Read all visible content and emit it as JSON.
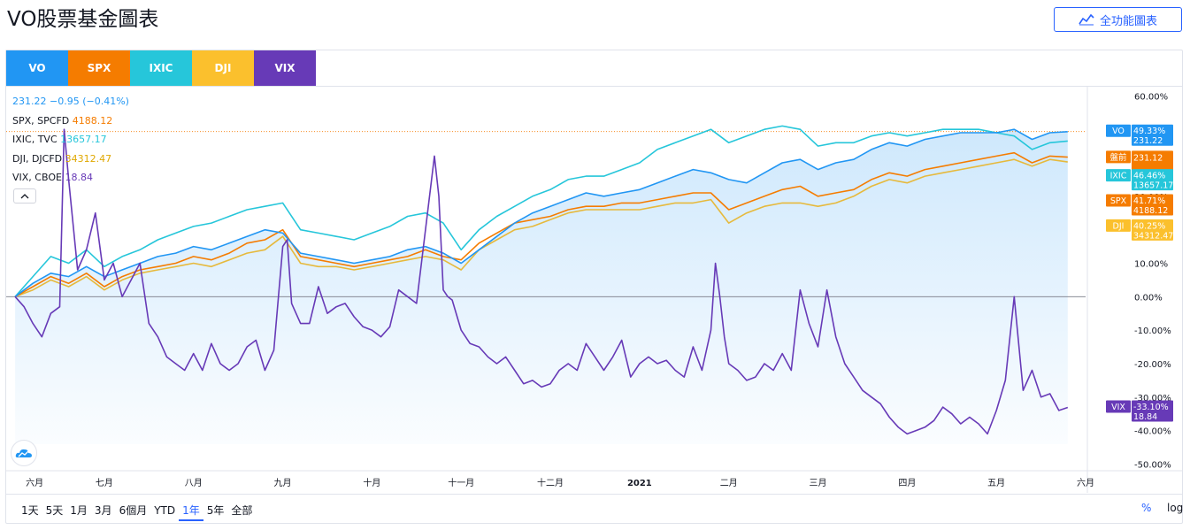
{
  "page": {
    "title": "VO股票基金圖表",
    "full_chart_button": "全功能圖表"
  },
  "tabs": [
    {
      "label": "VO",
      "color": "#2196f3"
    },
    {
      "label": "SPX",
      "color": "#f57c00"
    },
    {
      "label": "IXIC",
      "color": "#26c6da"
    },
    {
      "label": "DJI",
      "color": "#fbc02d"
    },
    {
      "label": "VIX",
      "color": "#673ab7"
    }
  ],
  "legend": [
    {
      "name": "",
      "value": "231.22 −0.95 (−0.41%)",
      "color": "#2196f3"
    },
    {
      "name": "SPX, SPCFD",
      "value": "4188.12",
      "color": "#f57c00"
    },
    {
      "name": "IXIC, TVC",
      "value": "13657.17",
      "color": "#26c6da"
    },
    {
      "name": "DJI, DJCFD",
      "value": "34312.47",
      "color": "#e0a800"
    },
    {
      "name": "VIX, CBOE",
      "value": "18.84",
      "color": "#673ab7"
    }
  ],
  "time_ranges": [
    {
      "label": "1天",
      "active": false
    },
    {
      "label": "5天",
      "active": false
    },
    {
      "label": "1月",
      "active": false
    },
    {
      "label": "3月",
      "active": false
    },
    {
      "label": "6個月",
      "active": false
    },
    {
      "label": "YTD",
      "active": false
    },
    {
      "label": "1年",
      "active": true
    },
    {
      "label": "5年",
      "active": false
    },
    {
      "label": "全部",
      "active": false
    }
  ],
  "scale_buttons": {
    "percent": "%",
    "log": "log"
  },
  "chart_data": {
    "type": "line",
    "title": "",
    "xlabel": "",
    "ylabel": "",
    "x_ticks": [
      "六月",
      "七月",
      "八月",
      "九月",
      "十月",
      "十一月",
      "十二月",
      "2021",
      "二月",
      "三月",
      "四月",
      "五月",
      "六月"
    ],
    "y_ticks": [
      "60.00%",
      "50.00%",
      "40.00%",
      "30.00%",
      "20.00%",
      "10.00%",
      "0.00%",
      "-10.00%",
      "-20.00%",
      "-30.00%",
      "-40.00%",
      "-50.00%"
    ],
    "y_tick_values": [
      60,
      50,
      40,
      30,
      20,
      10,
      0,
      -10,
      -20,
      -30,
      -40,
      -50
    ],
    "ylim": [
      -52,
      63
    ],
    "x_months": [
      0,
      1,
      2,
      3,
      4,
      5,
      6,
      7,
      8,
      9,
      10,
      11,
      12
    ],
    "xlim": [
      -0.1,
      12
    ],
    "grid": false,
    "badges": [
      {
        "series": "VO",
        "label": "VO",
        "pct": "49.33%",
        "value": "231.22",
        "y": 49.33,
        "color": "#2196f3"
      },
      {
        "series": "VO",
        "label": "盤前",
        "pct": "",
        "value": "231.12",
        "y": 41.5,
        "color": "#f57c00"
      },
      {
        "series": "IXIC",
        "label": "IXIC",
        "pct": "46.46%",
        "value": "13657.17",
        "y": 36.0,
        "color": "#26c6da"
      },
      {
        "series": "SPX",
        "label": "SPX",
        "pct": "41.71%",
        "value": "4188.12",
        "y": 28.5,
        "color": "#f57c00"
      },
      {
        "series": "DJI",
        "label": "DJI",
        "pct": "40.25%",
        "value": "34312.47",
        "y": 21.0,
        "color": "#fbc02d"
      },
      {
        "series": "VIX",
        "label": "VIX",
        "pct": "-33.10%",
        "value": "18.84",
        "y": -33.1,
        "color": "#673ab7"
      }
    ],
    "series": [
      {
        "name": "VO",
        "color": "#2196f3",
        "x": [
          0,
          0.2,
          0.4,
          0.6,
          0.8,
          1.0,
          1.2,
          1.4,
          1.6,
          1.8,
          2.0,
          2.2,
          2.4,
          2.6,
          2.8,
          3.0,
          3.2,
          3.4,
          3.6,
          3.8,
          4.0,
          4.2,
          4.4,
          4.6,
          4.8,
          5.0,
          5.2,
          5.4,
          5.6,
          5.8,
          6.0,
          6.2,
          6.4,
          6.6,
          6.8,
          7.0,
          7.2,
          7.4,
          7.6,
          7.8,
          8.0,
          8.2,
          8.4,
          8.6,
          8.8,
          9.0,
          9.2,
          9.4,
          9.6,
          9.8,
          10.0,
          10.2,
          10.4,
          10.6,
          10.8,
          11.0,
          11.2,
          11.4,
          11.6,
          11.8
        ],
        "values": [
          0,
          4,
          7,
          6,
          9,
          6,
          8,
          10,
          12,
          13,
          15,
          14,
          16,
          18,
          20,
          19,
          13,
          12,
          11,
          10,
          11,
          12,
          14,
          15,
          13,
          10,
          14,
          18,
          22,
          25,
          27,
          29,
          31,
          30,
          31,
          32,
          34,
          36,
          38,
          37,
          35,
          34,
          37,
          40,
          41,
          38,
          40,
          41,
          44,
          46,
          45,
          47,
          48,
          49,
          49,
          49,
          50,
          47,
          49,
          49.3
        ]
      },
      {
        "name": "SPX",
        "color": "#f57c00",
        "x": [
          0,
          0.2,
          0.4,
          0.6,
          0.8,
          1.0,
          1.2,
          1.4,
          1.6,
          1.8,
          2.0,
          2.2,
          2.4,
          2.6,
          2.8,
          3.0,
          3.2,
          3.4,
          3.6,
          3.8,
          4.0,
          4.2,
          4.4,
          4.6,
          4.8,
          5.0,
          5.2,
          5.4,
          5.6,
          5.8,
          6.0,
          6.2,
          6.4,
          6.6,
          6.8,
          7.0,
          7.2,
          7.4,
          7.6,
          7.8,
          8.0,
          8.2,
          8.4,
          8.6,
          8.8,
          9.0,
          9.2,
          9.4,
          9.6,
          9.8,
          10.0,
          10.2,
          10.4,
          10.6,
          10.8,
          11.0,
          11.2,
          11.4,
          11.6,
          11.8
        ],
        "values": [
          0,
          3,
          6,
          4,
          7,
          3,
          6,
          8,
          9,
          10,
          12,
          11,
          13,
          16,
          17,
          20,
          12,
          11,
          10,
          9,
          10,
          11,
          12,
          14,
          12,
          11,
          16,
          19,
          22,
          23,
          24,
          26,
          27,
          27,
          28,
          28,
          29,
          30,
          31,
          31,
          26,
          28,
          30,
          32,
          33,
          30,
          31,
          32,
          35,
          37,
          36,
          38,
          39,
          40,
          41,
          42,
          43,
          40,
          42,
          41.7
        ]
      },
      {
        "name": "IXIC",
        "color": "#26c6da",
        "x": [
          0,
          0.2,
          0.4,
          0.6,
          0.8,
          1.0,
          1.2,
          1.4,
          1.6,
          1.8,
          2.0,
          2.2,
          2.4,
          2.6,
          2.8,
          3.0,
          3.2,
          3.4,
          3.6,
          3.8,
          4.0,
          4.2,
          4.4,
          4.6,
          4.8,
          5.0,
          5.2,
          5.4,
          5.6,
          5.8,
          6.0,
          6.2,
          6.4,
          6.6,
          6.8,
          7.0,
          7.2,
          7.4,
          7.6,
          7.8,
          8.0,
          8.2,
          8.4,
          8.6,
          8.8,
          9.0,
          9.2,
          9.4,
          9.6,
          9.8,
          10.0,
          10.2,
          10.4,
          10.6,
          10.8,
          11.0,
          11.2,
          11.4,
          11.6,
          11.8
        ],
        "values": [
          0,
          6,
          12,
          10,
          14,
          9,
          12,
          14,
          17,
          19,
          21,
          22,
          24,
          26,
          27,
          28,
          20,
          19,
          18,
          17,
          19,
          21,
          24,
          25,
          22,
          14,
          20,
          24,
          27,
          30,
          32,
          35,
          36,
          36,
          38,
          40,
          44,
          46,
          48,
          50,
          46,
          48,
          50,
          51,
          50,
          45,
          46,
          46,
          48,
          49,
          48,
          49,
          50,
          50,
          50,
          49,
          48,
          44,
          46,
          46.5
        ]
      },
      {
        "name": "DJI",
        "color": "#e6b93c",
        "x": [
          0,
          0.2,
          0.4,
          0.6,
          0.8,
          1.0,
          1.2,
          1.4,
          1.6,
          1.8,
          2.0,
          2.2,
          2.4,
          2.6,
          2.8,
          3.0,
          3.2,
          3.4,
          3.6,
          3.8,
          4.0,
          4.2,
          4.4,
          4.6,
          4.8,
          5.0,
          5.2,
          5.4,
          5.6,
          5.8,
          6.0,
          6.2,
          6.4,
          6.6,
          6.8,
          7.0,
          7.2,
          7.4,
          7.6,
          7.8,
          8.0,
          8.2,
          8.4,
          8.6,
          8.8,
          9.0,
          9.2,
          9.4,
          9.6,
          9.8,
          10.0,
          10.2,
          10.4,
          10.6,
          10.8,
          11.0,
          11.2,
          11.4,
          11.6,
          11.8
        ],
        "values": [
          0,
          2,
          5,
          3,
          6,
          2,
          5,
          7,
          8,
          9,
          10,
          9,
          11,
          13,
          14,
          18,
          10,
          9,
          9,
          8,
          9,
          10,
          11,
          12,
          11,
          8,
          14,
          17,
          20,
          21,
          23,
          25,
          26,
          26,
          26,
          26,
          27,
          28,
          28,
          29,
          22,
          25,
          27,
          28,
          28,
          27,
          28,
          30,
          33,
          35,
          34,
          36,
          37,
          38,
          39,
          40,
          41,
          39,
          41,
          40.25
        ]
      },
      {
        "name": "VIX",
        "color": "#673ab7",
        "x": [
          0,
          0.1,
          0.2,
          0.3,
          0.4,
          0.5,
          0.55,
          0.6,
          0.7,
          0.8,
          0.9,
          1.0,
          1.1,
          1.2,
          1.3,
          1.4,
          1.5,
          1.6,
          1.7,
          1.8,
          1.9,
          2.0,
          2.1,
          2.2,
          2.3,
          2.4,
          2.5,
          2.6,
          2.7,
          2.8,
          2.9,
          3.0,
          3.05,
          3.1,
          3.2,
          3.3,
          3.4,
          3.5,
          3.6,
          3.7,
          3.8,
          3.9,
          4.0,
          4.1,
          4.2,
          4.3,
          4.4,
          4.5,
          4.6,
          4.7,
          4.75,
          4.8,
          4.85,
          4.9,
          5.0,
          5.1,
          5.2,
          5.3,
          5.4,
          5.5,
          5.6,
          5.7,
          5.8,
          5.9,
          6.0,
          6.1,
          6.2,
          6.3,
          6.4,
          6.5,
          6.6,
          6.7,
          6.8,
          6.9,
          7.0,
          7.1,
          7.2,
          7.3,
          7.4,
          7.5,
          7.6,
          7.7,
          7.8,
          7.85,
          7.9,
          7.95,
          8.0,
          8.1,
          8.2,
          8.3,
          8.4,
          8.5,
          8.6,
          8.7,
          8.8,
          8.9,
          9.0,
          9.1,
          9.2,
          9.3,
          9.4,
          9.5,
          9.6,
          9.7,
          9.8,
          9.9,
          10.0,
          10.1,
          10.2,
          10.3,
          10.4,
          10.5,
          10.6,
          10.7,
          10.8,
          10.9,
          11.0,
          11.1,
          11.2,
          11.3,
          11.4,
          11.5,
          11.6,
          11.7,
          11.8
        ],
        "values": [
          0,
          -3,
          -8,
          -12,
          -5,
          -3,
          50,
          35,
          8,
          14,
          25,
          5,
          10,
          0,
          5,
          10,
          -8,
          -12,
          -18,
          -20,
          -22,
          -17,
          -22,
          -14,
          -20,
          -22,
          -20,
          -15,
          -13,
          -22,
          -16,
          15,
          17,
          -2,
          -8,
          -8,
          3,
          -5,
          -3,
          -2,
          -6,
          -9,
          -10,
          -12,
          -9,
          2,
          0,
          -2,
          20,
          42,
          30,
          2,
          0,
          -1,
          -10,
          -14,
          -15,
          -18,
          -20,
          -18,
          -22,
          -26,
          -25,
          -27,
          -26,
          -22,
          -20,
          -22,
          -14,
          -18,
          -22,
          -18,
          -13,
          -24,
          -20,
          -18,
          -20,
          -19,
          -22,
          -24,
          -15,
          -22,
          -10,
          10,
          0,
          -12,
          -20,
          -22,
          -25,
          -24,
          -20,
          -22,
          -17,
          -22,
          2,
          -8,
          -15,
          2,
          -12,
          -20,
          -24,
          -28,
          -30,
          -32,
          -36,
          -39,
          -41,
          -40,
          -39,
          -37,
          -33,
          -35,
          -38,
          -36,
          -38,
          -41,
          -34,
          -25,
          0,
          -28,
          -22,
          -30,
          -29,
          -34,
          -33.1
        ]
      }
    ]
  }
}
